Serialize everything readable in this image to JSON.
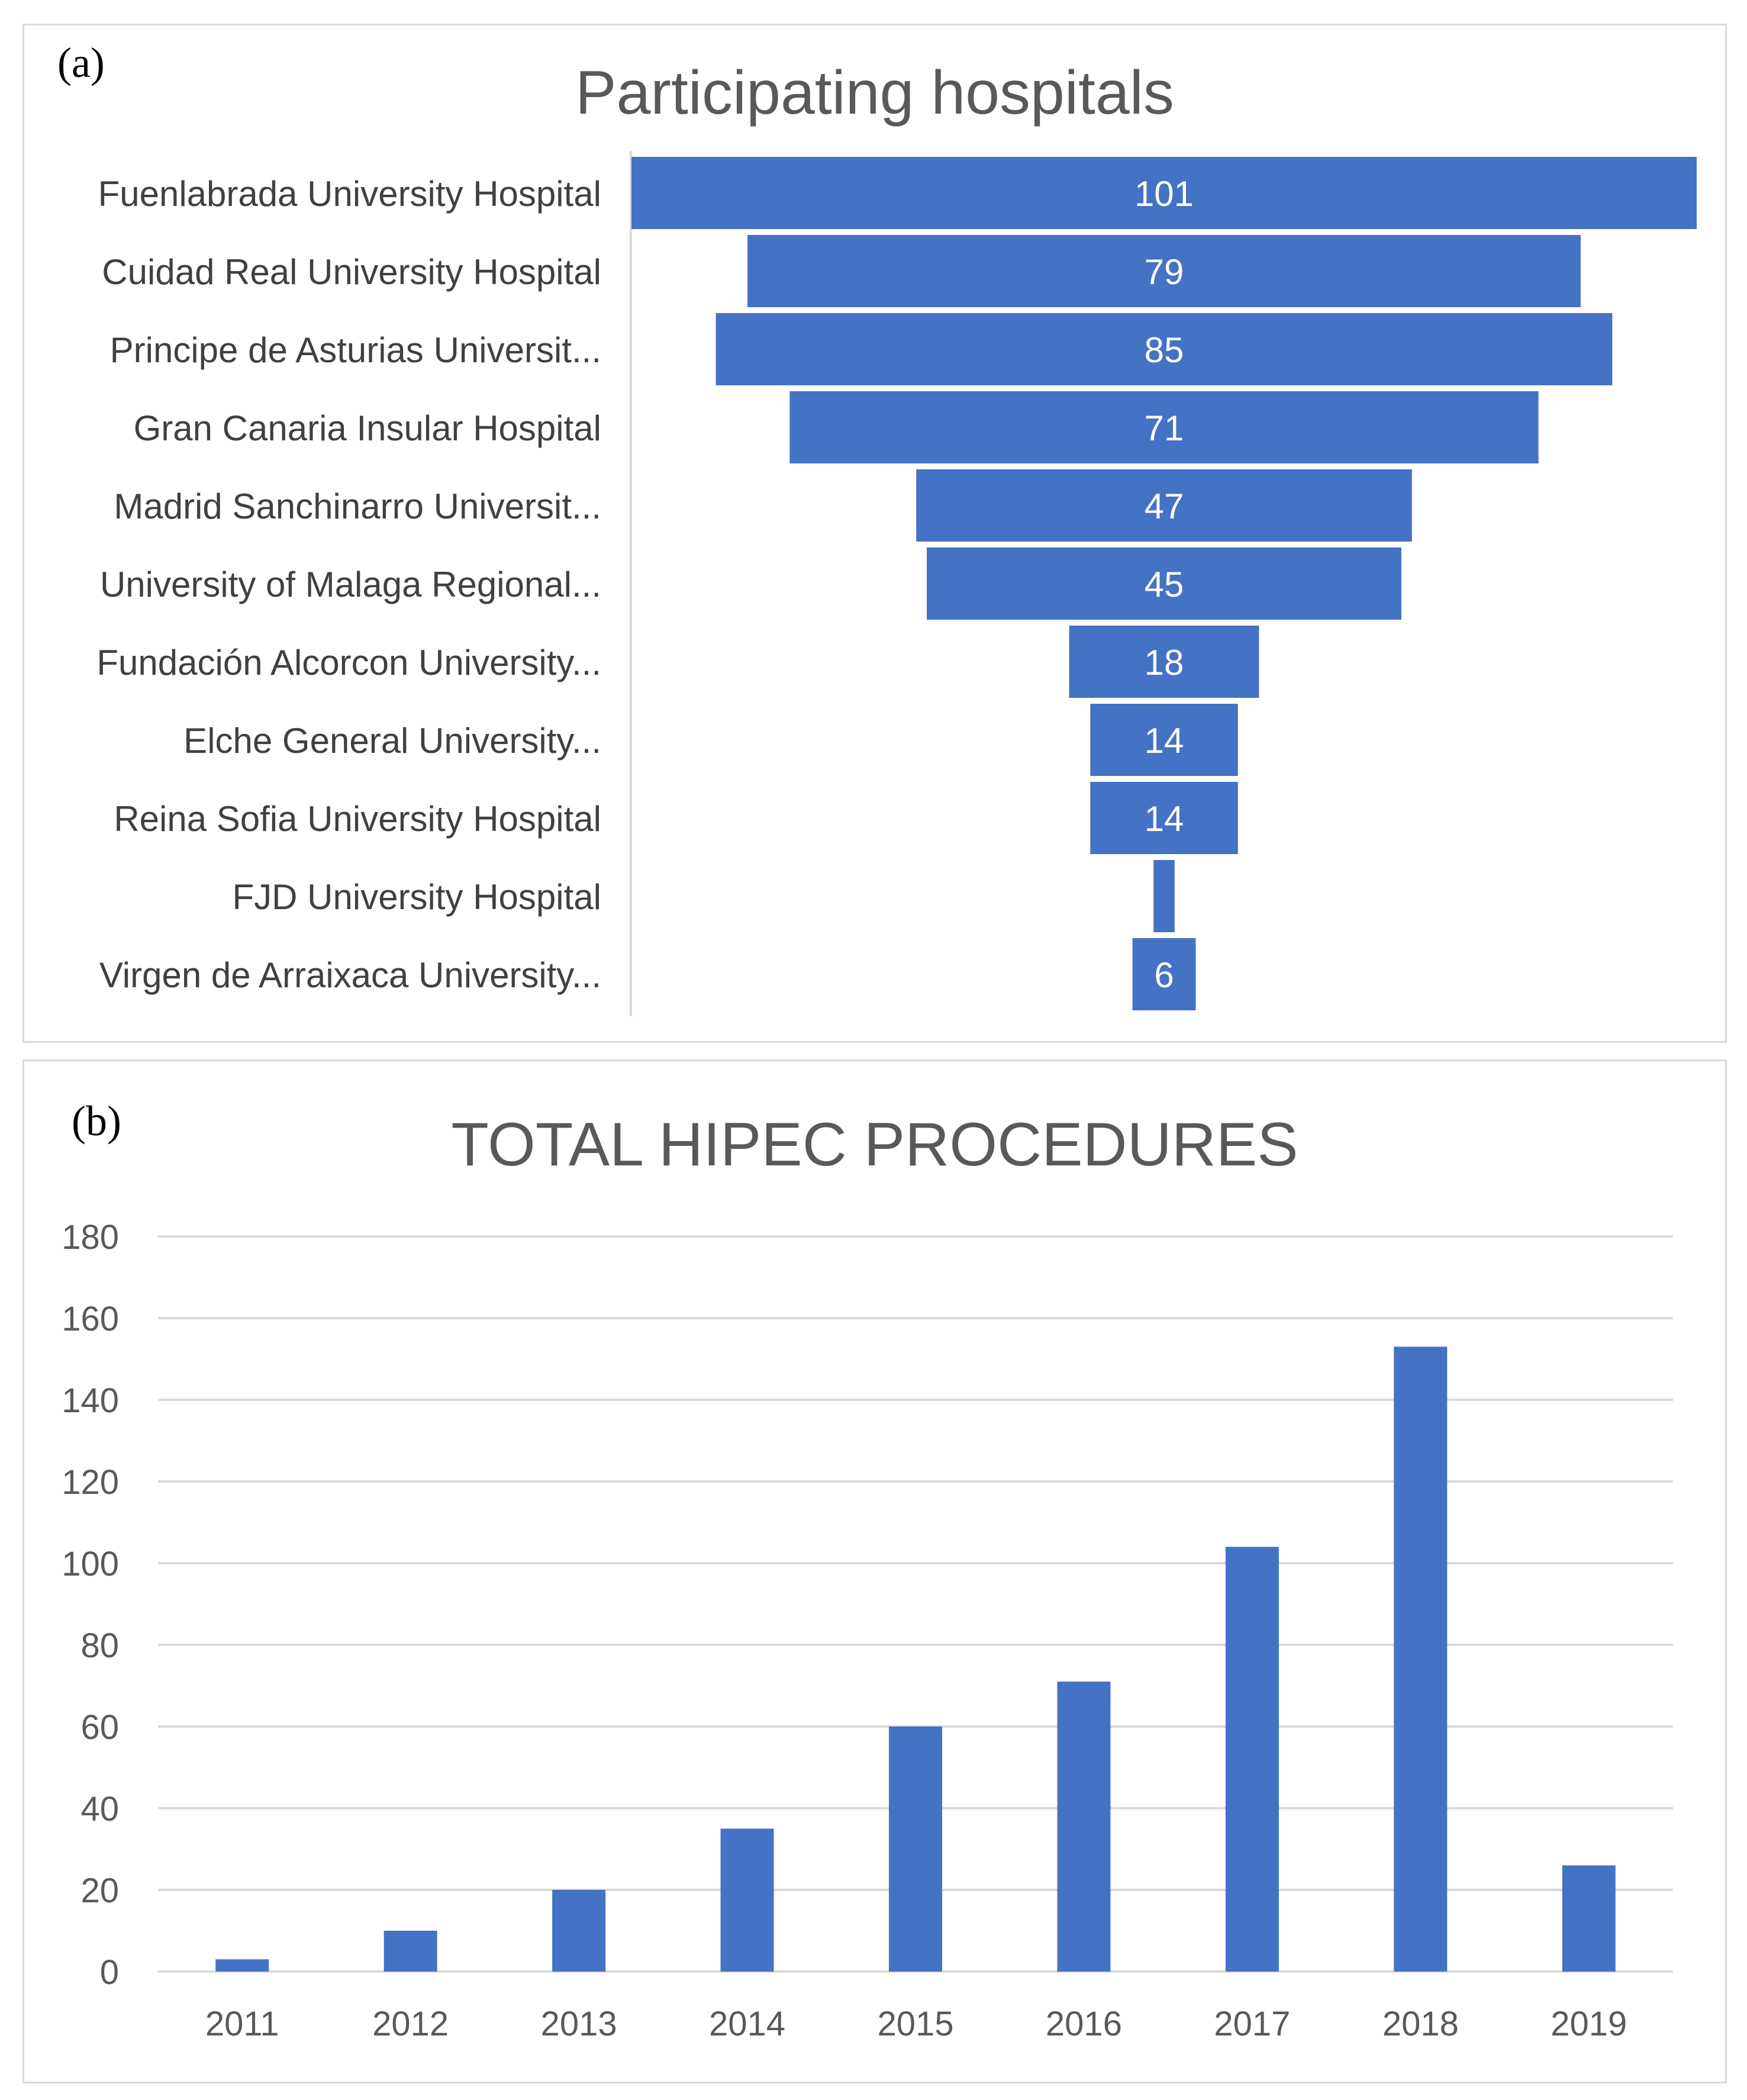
{
  "panel_a": {
    "label": "(a)"
  },
  "panel_b": {
    "label": "(b)"
  },
  "chart_data": [
    {
      "type": "bar",
      "subtype": "funnel",
      "title": "Participating hospitals",
      "categories": [
        "Fuenlabrada University Hospital",
        "Cuidad Real University Hospital",
        "Principe de Asturias Universit...",
        "Gran Canaria Insular Hospital",
        "Madrid Sanchinarro Universit...",
        "University of Malaga Regional...",
        "Fundación Alcorcon University...",
        "Elche General University...",
        "Reina Sofia University Hospital",
        "FJD University Hospital",
        "Virgen de Arraixaca University..."
      ],
      "values": [
        101,
        79,
        85,
        71,
        47,
        45,
        18,
        14,
        14,
        2,
        6
      ],
      "data_labels": [
        "101",
        "79",
        "85",
        "71",
        "47",
        "45",
        "18",
        "14",
        "14",
        "",
        "6"
      ],
      "bar_color": "#4472c4",
      "label_color": "#ffffff",
      "text_color": "#404040"
    },
    {
      "type": "bar",
      "title": "TOTAL HIPEC PROCEDURES",
      "categories": [
        "2011",
        "2012",
        "2013",
        "2014",
        "2015",
        "2016",
        "2017",
        "2018",
        "2019"
      ],
      "values": [
        3,
        10,
        20,
        35,
        60,
        71,
        104,
        153,
        26
      ],
      "ylim": [
        0,
        180
      ],
      "yticks": [
        0,
        20,
        40,
        60,
        80,
        100,
        120,
        140,
        160,
        180
      ],
      "grid": true,
      "bar_color": "#4472c4",
      "grid_color": "#d9d9d9",
      "text_color": "#595959"
    }
  ]
}
